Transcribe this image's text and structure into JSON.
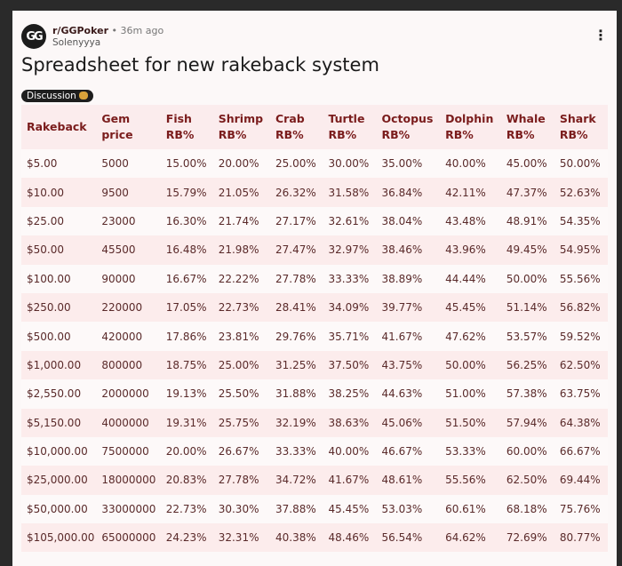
{
  "post": {
    "avatar_text": "GG",
    "subreddit": "r/GGPoker",
    "separator": "•",
    "time": "36m ago",
    "author": "Solenyyya",
    "title": "Spreadsheet for new rakeback system",
    "flair": "Discussion",
    "more_label": "⋮"
  },
  "table": {
    "headers": [
      [
        "Rakeback",
        ""
      ],
      [
        "Gem",
        "price"
      ],
      [
        "Fish",
        "RB%"
      ],
      [
        "Shrimp",
        "RB%"
      ],
      [
        "Crab",
        "RB%"
      ],
      [
        "Turtle",
        "RB%"
      ],
      [
        "Octopus",
        "RB%"
      ],
      [
        "Dolphin",
        "RB%"
      ],
      [
        "Whale",
        "RB%"
      ],
      [
        "Shark",
        "RB%"
      ]
    ],
    "rows": [
      [
        "$5.00",
        "5000",
        "15.00%",
        "20.00%",
        "25.00%",
        "30.00%",
        "35.00%",
        "40.00%",
        "45.00%",
        "50.00%"
      ],
      [
        "$10.00",
        "9500",
        "15.79%",
        "21.05%",
        "26.32%",
        "31.58%",
        "36.84%",
        "42.11%",
        "47.37%",
        "52.63%"
      ],
      [
        "$25.00",
        "23000",
        "16.30%",
        "21.74%",
        "27.17%",
        "32.61%",
        "38.04%",
        "43.48%",
        "48.91%",
        "54.35%"
      ],
      [
        "$50.00",
        "45500",
        "16.48%",
        "21.98%",
        "27.47%",
        "32.97%",
        "38.46%",
        "43.96%",
        "49.45%",
        "54.95%"
      ],
      [
        "$100.00",
        "90000",
        "16.67%",
        "22.22%",
        "27.78%",
        "33.33%",
        "38.89%",
        "44.44%",
        "50.00%",
        "55.56%"
      ],
      [
        "$250.00",
        "220000",
        "17.05%",
        "22.73%",
        "28.41%",
        "34.09%",
        "39.77%",
        "45.45%",
        "51.14%",
        "56.82%"
      ],
      [
        "$500.00",
        "420000",
        "17.86%",
        "23.81%",
        "29.76%",
        "35.71%",
        "41.67%",
        "47.62%",
        "53.57%",
        "59.52%"
      ],
      [
        "$1,000.00",
        "800000",
        "18.75%",
        "25.00%",
        "31.25%",
        "37.50%",
        "43.75%",
        "50.00%",
        "56.25%",
        "62.50%"
      ],
      [
        "$2,550.00",
        "2000000",
        "19.13%",
        "25.50%",
        "31.88%",
        "38.25%",
        "44.63%",
        "51.00%",
        "57.38%",
        "63.75%"
      ],
      [
        "$5,150.00",
        "4000000",
        "19.31%",
        "25.75%",
        "32.19%",
        "38.63%",
        "45.06%",
        "51.50%",
        "57.94%",
        "64.38%"
      ],
      [
        "$10,000.00",
        "7500000",
        "20.00%",
        "26.67%",
        "33.33%",
        "40.00%",
        "46.67%",
        "53.33%",
        "60.00%",
        "66.67%"
      ],
      [
        "$25,000.00",
        "18000000",
        "20.83%",
        "27.78%",
        "34.72%",
        "41.67%",
        "48.61%",
        "55.56%",
        "62.50%",
        "69.44%"
      ],
      [
        "$50,000.00",
        "33000000",
        "22.73%",
        "30.30%",
        "37.88%",
        "45.45%",
        "53.03%",
        "60.61%",
        "68.18%",
        "75.76%"
      ],
      [
        "$105,000.00",
        "65000000",
        "24.23%",
        "32.31%",
        "40.38%",
        "48.46%",
        "56.54%",
        "64.62%",
        "72.69%",
        "80.77%"
      ]
    ]
  }
}
